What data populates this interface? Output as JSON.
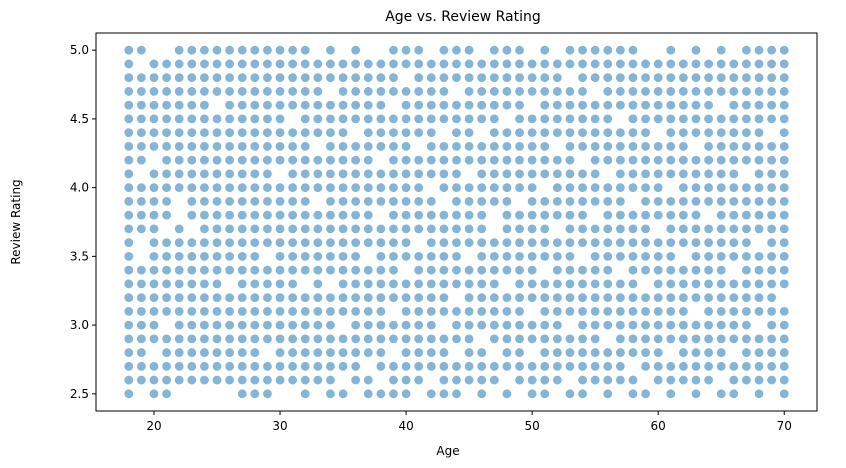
{
  "chart_data": {
    "type": "scatter",
    "title": "Age vs. Review Rating",
    "xlabel": "Age",
    "ylabel": "Review Rating",
    "xlim": [
      15.4,
      72.6
    ],
    "ylim": [
      2.375,
      5.125
    ],
    "x_ticks": [
      20,
      30,
      40,
      50,
      60,
      70
    ],
    "y_ticks": [
      2.5,
      3.0,
      3.5,
      4.0,
      4.5,
      5.0
    ],
    "x_tick_labels": [
      "20",
      "30",
      "40",
      "50",
      "60",
      "70"
    ],
    "y_tick_labels": [
      "2.5",
      "3.0",
      "3.5",
      "4.0",
      "4.5",
      "5.0"
    ],
    "x_range": [
      18,
      70
    ],
    "y_range": [
      2.5,
      5.0
    ],
    "y_step": 0.1,
    "marker_color": "#1f77b4",
    "marker_alpha": 0.55,
    "missing_points": [
      [
        19,
        2.5
      ],
      [
        19,
        3.5
      ],
      [
        19,
        3.6
      ],
      [
        19,
        4.1
      ],
      [
        19,
        4.9
      ],
      [
        20,
        2.8
      ],
      [
        20,
        4.2
      ],
      [
        20,
        5.0
      ],
      [
        21,
        3.0
      ],
      [
        21,
        3.7
      ],
      [
        21,
        5.0
      ],
      [
        22,
        3.9
      ],
      [
        22,
        3.8
      ],
      [
        22,
        2.5
      ],
      [
        23,
        2.5
      ],
      [
        23,
        3.7
      ],
      [
        24,
        2.5
      ],
      [
        25,
        2.5
      ],
      [
        25,
        4.6
      ],
      [
        26,
        2.5
      ],
      [
        26,
        3.3
      ],
      [
        29,
        2.8
      ],
      [
        29,
        3.5
      ],
      [
        30,
        2.5
      ],
      [
        30,
        4.1
      ],
      [
        31,
        2.5
      ],
      [
        31,
        4.5
      ],
      [
        32,
        3.3
      ],
      [
        33,
        2.5
      ],
      [
        33,
        3.9
      ],
      [
        33,
        4.3
      ],
      [
        33,
        5.0
      ],
      [
        34,
        3.3
      ],
      [
        34,
        4.7
      ],
      [
        35,
        2.6
      ],
      [
        35,
        3.0
      ],
      [
        35,
        5.0
      ],
      [
        36,
        2.5
      ],
      [
        36,
        4.4
      ],
      [
        37,
        2.7
      ],
      [
        37,
        3.5
      ],
      [
        37,
        5.0
      ],
      [
        38,
        2.6
      ],
      [
        38,
        3.8
      ],
      [
        38,
        4.2
      ],
      [
        38,
        5.0
      ],
      [
        39,
        2.8
      ],
      [
        39,
        3.1
      ],
      [
        39,
        4.6
      ],
      [
        40,
        3.4
      ],
      [
        40,
        4.8
      ],
      [
        41,
        2.5
      ],
      [
        41,
        3.6
      ],
      [
        41,
        4.3
      ],
      [
        42,
        2.6
      ],
      [
        42,
        4.0
      ],
      [
        42,
        5.0
      ],
      [
        43,
        3.0
      ],
      [
        43,
        3.9
      ],
      [
        43,
        4.4
      ],
      [
        44,
        2.8
      ],
      [
        44,
        3.2
      ],
      [
        44,
        4.7
      ],
      [
        45,
        2.5
      ],
      [
        45,
        3.5
      ],
      [
        45,
        4.1
      ],
      [
        46,
        2.9
      ],
      [
        46,
        4.4
      ],
      [
        46,
        5.0
      ],
      [
        47,
        2.5
      ],
      [
        47,
        2.8
      ],
      [
        47,
        3.7
      ],
      [
        47,
        3.8
      ],
      [
        48,
        2.6
      ],
      [
        48,
        3.3
      ],
      [
        48,
        4.5
      ],
      [
        49,
        2.5
      ],
      [
        49,
        3.9
      ],
      [
        50,
        2.8
      ],
      [
        50,
        3.1
      ],
      [
        50,
        4.6
      ],
      [
        50,
        5.0
      ],
      [
        51,
        3.4
      ],
      [
        51,
        4.0
      ],
      [
        52,
        2.5
      ],
      [
        52,
        3.7
      ],
      [
        52,
        4.3
      ],
      [
        52,
        5.0
      ],
      [
        53,
        2.6
      ],
      [
        53,
        3.0
      ],
      [
        53,
        4.8
      ],
      [
        54,
        3.5
      ],
      [
        54,
        4.2
      ],
      [
        55,
        2.5
      ],
      [
        55,
        3.8
      ],
      [
        55,
        4.7
      ],
      [
        56,
        2.9
      ],
      [
        56,
        4.1
      ],
      [
        57,
        2.5
      ],
      [
        57,
        3.4
      ],
      [
        57,
        4.5
      ],
      [
        58,
        2.7
      ],
      [
        58,
        3.9
      ],
      [
        59,
        2.6
      ],
      [
        59,
        3.3
      ],
      [
        59,
        5.0
      ],
      [
        60,
        2.5
      ],
      [
        60,
        3.7
      ],
      [
        60,
        4.4
      ],
      [
        60,
        5.0
      ],
      [
        61,
        2.8
      ],
      [
        61,
        4.0
      ],
      [
        62,
        2.5
      ],
      [
        62,
        3.5
      ],
      [
        62,
        5.0
      ],
      [
        63,
        3.1
      ],
      [
        63,
        4.3
      ],
      [
        64,
        2.5
      ],
      [
        64,
        3.8
      ],
      [
        64,
        5.0
      ],
      [
        65,
        2.6
      ],
      [
        65,
        4.6
      ],
      [
        66,
        2.8
      ],
      [
        66,
        3.4
      ],
      [
        66,
        5.0
      ],
      [
        67,
        2.5
      ],
      [
        67,
        4.1
      ],
      [
        68,
        3.0
      ],
      [
        68,
        3.6
      ],
      [
        69,
        2.5
      ],
      [
        69,
        4.4
      ],
      [
        70,
        3.2
      ]
    ]
  }
}
